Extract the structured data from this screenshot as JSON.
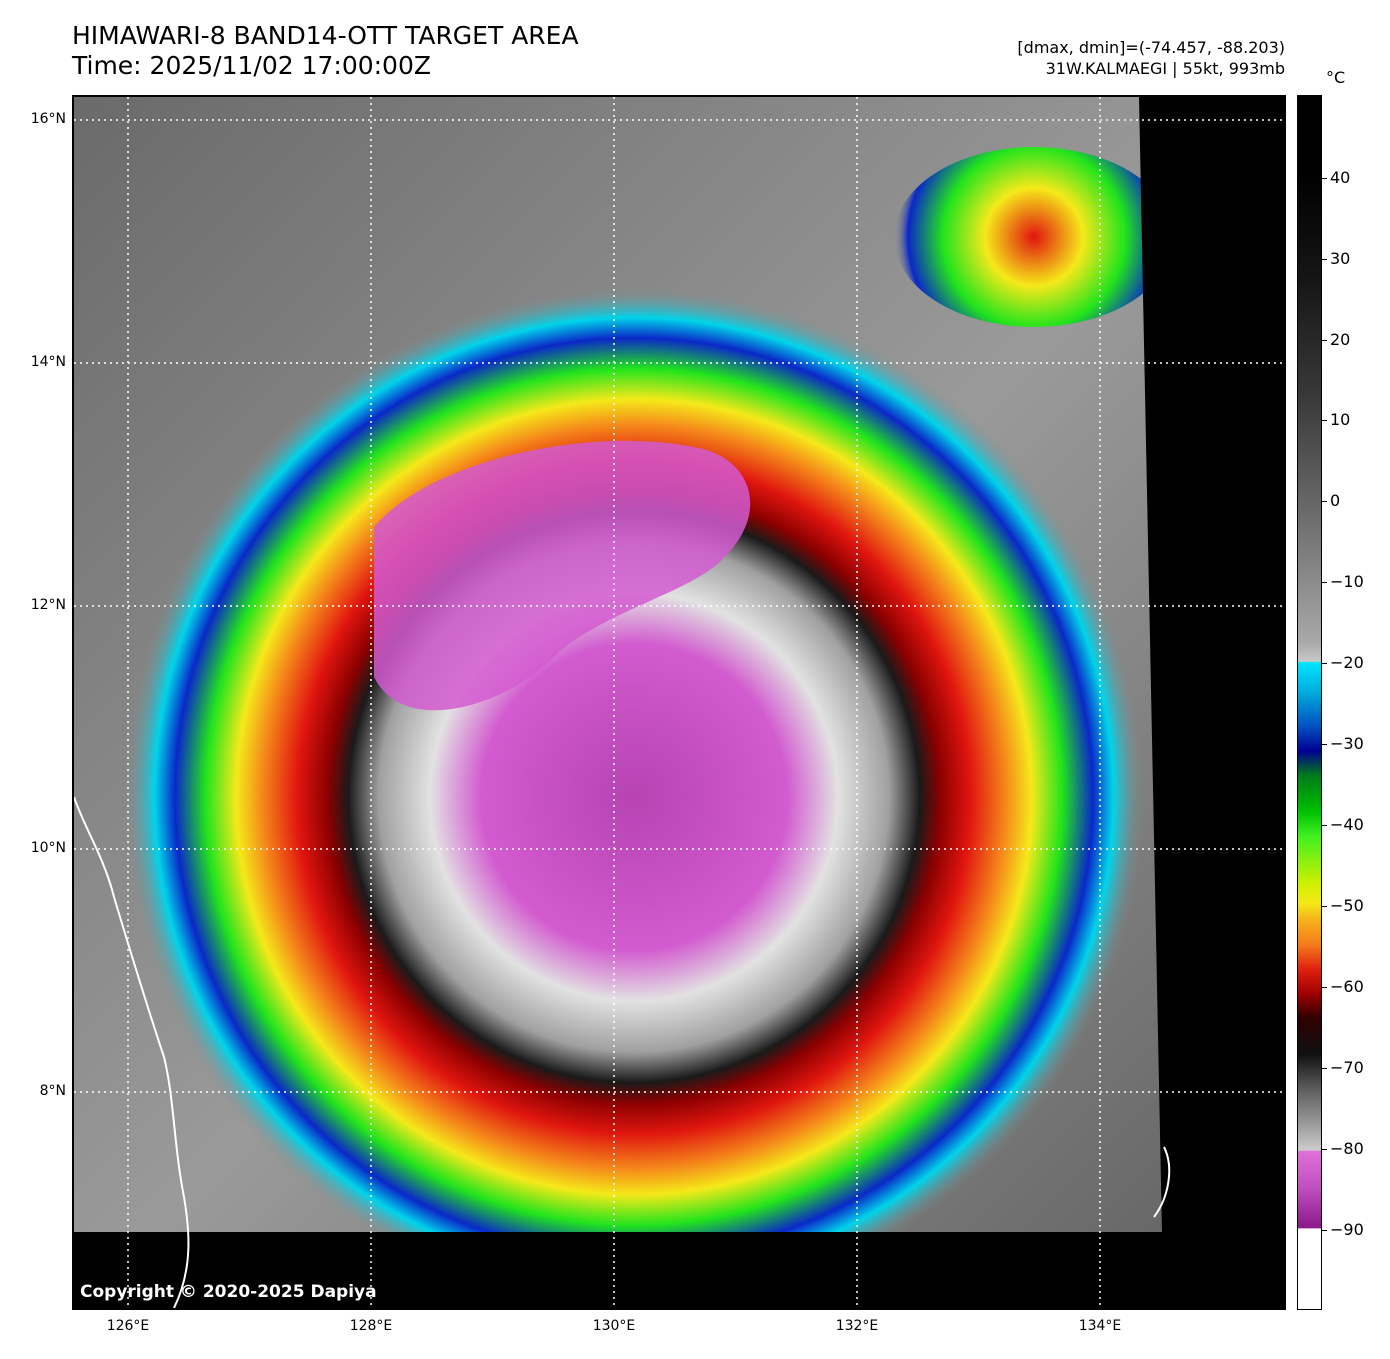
{
  "header": {
    "title": "HIMAWARI-8 BAND14-OTT TARGET AREA",
    "time": "Time: 2025/11/02 17:00:00Z",
    "range": "[dmax, dmin]=(-74.457, -88.203)",
    "storm": "31W.KALMAEGI | 55kt, 993mb"
  },
  "map": {
    "lat_labels": [
      "16°N",
      "14°N",
      "12°N",
      "10°N",
      "8°N"
    ],
    "lon_labels": [
      "126°E",
      "128°E",
      "130°E",
      "132°E",
      "134°E"
    ],
    "copyright": "Copyright © 2020-2025 Dapiya",
    "colors": {
      "cloud_top_cold": "#d35ad0",
      "cold_core": "#a03aa0",
      "ring_red": "#e0150f",
      "ring_yellow": "#f5e91a",
      "ring_green": "#22e41c",
      "ring_blue": "#0a28c8",
      "no_data": "#000000"
    }
  },
  "colorbar": {
    "unit": "°C",
    "labels": [
      "40",
      "30",
      "20",
      "10",
      "0",
      "−10",
      "−20",
      "−30",
      "−40",
      "−50",
      "−60",
      "−70",
      "−80",
      "−90"
    ]
  }
}
